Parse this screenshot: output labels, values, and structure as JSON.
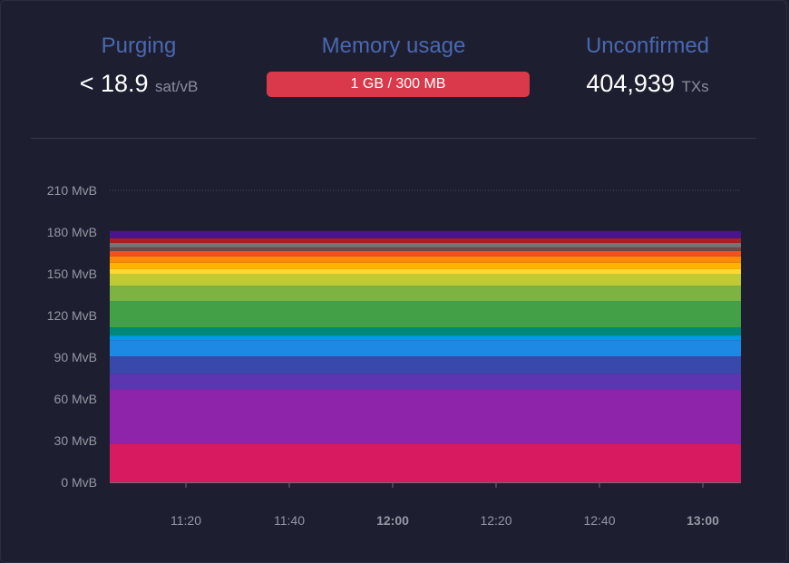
{
  "stats": {
    "purging": {
      "title": "Purging",
      "value": "< 18.9",
      "unit": "sat/vB"
    },
    "memory": {
      "title": "Memory usage",
      "value": "1 GB / 300 MB"
    },
    "unconfirmed": {
      "title": "Unconfirmed",
      "value": "404,939",
      "unit": "TXs"
    }
  },
  "chart_data": {
    "type": "area",
    "stacked": true,
    "x_range": [
      "11:05",
      "13:07"
    ],
    "x_ticks": [
      {
        "label": "11:20",
        "bold": false
      },
      {
        "label": "11:40",
        "bold": false
      },
      {
        "label": "12:00",
        "bold": true
      },
      {
        "label": "12:20",
        "bold": false
      },
      {
        "label": "12:40",
        "bold": false
      },
      {
        "label": "13:00",
        "bold": true
      }
    ],
    "y_ticks": [
      "0 MvB",
      "30 MvB",
      "60 MvB",
      "90 MvB",
      "120 MvB",
      "150 MvB",
      "180 MvB",
      "210 MvB"
    ],
    "ylim": [
      0,
      210
    ],
    "ylabel_unit": "MvB",
    "series": [
      {
        "color": "#d81b60",
        "value": 27.4
      },
      {
        "color": "#8e24aa",
        "value": 39.1
      },
      {
        "color": "#5e35b1",
        "value": 11.7
      },
      {
        "color": "#3949ab",
        "value": 12.4
      },
      {
        "color": "#1e88e5",
        "value": 11.7
      },
      {
        "color": "#039be5",
        "value": 3.3
      },
      {
        "color": "#00897b",
        "value": 5.9
      },
      {
        "color": "#43a047",
        "value": 18.9
      },
      {
        "color": "#7cb342",
        "value": 11.1
      },
      {
        "color": "#c0ca33",
        "value": 8.5
      },
      {
        "color": "#fdd835",
        "value": 3.3
      },
      {
        "color": "#ffb300",
        "value": 4.6
      },
      {
        "color": "#fb8c00",
        "value": 4.6
      },
      {
        "color": "#f4511e",
        "value": 3.9
      },
      {
        "color": "#6d4c41",
        "value": 2.6
      },
      {
        "color": "#757575",
        "value": 3.3
      },
      {
        "color": "#b71c1c",
        "value": 3.3
      },
      {
        "color": "#4a148c",
        "value": 5.2
      }
    ]
  }
}
